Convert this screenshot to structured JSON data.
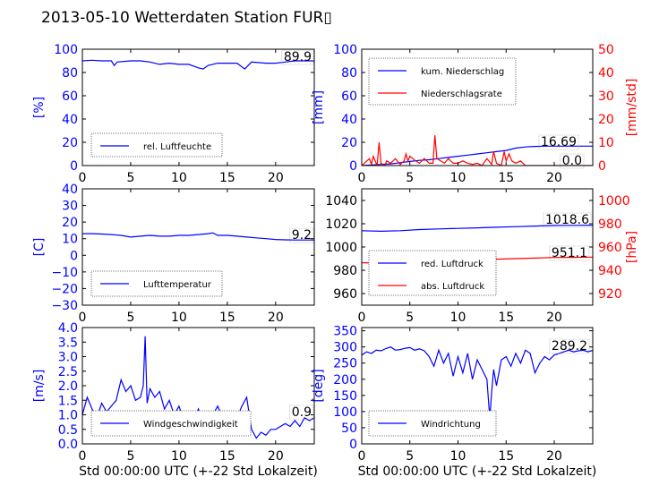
{
  "title": "2013-05-10 Wetterdaten Station FUR▯",
  "colors": {
    "blue": "#0000ff",
    "red": "#ff0000",
    "black": "#000000"
  },
  "chart_data": [
    {
      "type": "line",
      "xlabel": "",
      "ylabel": "[%]",
      "xlim": [
        0,
        24
      ],
      "ylim": [
        0,
        100
      ],
      "xticks": [
        0,
        5,
        10,
        15,
        20
      ],
      "yticks": [
        0,
        20,
        40,
        60,
        80,
        100
      ],
      "legend": "lower-left",
      "value_label": "89.9",
      "series": [
        {
          "name": "rel. Luftfeuchte",
          "x": [
            0,
            1,
            2,
            3,
            3.3,
            3.6,
            5,
            6,
            7,
            8,
            9,
            10,
            11,
            12,
            12.5,
            13,
            14,
            15,
            16,
            16.8,
            17.5,
            19,
            20,
            21,
            22,
            23,
            24
          ],
          "y": [
            90,
            90.5,
            90,
            90,
            86,
            89,
            90,
            90,
            89,
            87,
            88,
            87,
            87,
            84,
            83,
            86,
            88,
            88,
            88,
            83,
            89,
            88,
            88,
            89,
            90,
            90,
            90
          ]
        }
      ]
    },
    {
      "type": "line",
      "xlabel": "",
      "ylabel": "[mm]",
      "ylabel_right": "[mm/std]",
      "xlim": [
        0,
        24
      ],
      "ylim": [
        0,
        100
      ],
      "ylim_right": [
        0,
        50
      ],
      "xticks": [
        0,
        5,
        10,
        15,
        20
      ],
      "yticks": [
        0,
        20,
        40,
        60,
        80,
        100
      ],
      "yticks_right": [
        0,
        10,
        20,
        30,
        40,
        50
      ],
      "legend": "upper-left",
      "value_labels": [
        "16.69",
        "0.0"
      ],
      "series": [
        {
          "name": "kum. Niederschlag",
          "axis": "left",
          "x": [
            0,
            1,
            2,
            3,
            4,
            5,
            6,
            7,
            8,
            9,
            10,
            11,
            12,
            13,
            14,
            15,
            16,
            17,
            18,
            19,
            20,
            21,
            22,
            23,
            24
          ],
          "y": [
            0,
            0.5,
            1,
            1.5,
            2.5,
            3.5,
            4.5,
            5,
            6,
            7,
            8,
            9,
            10,
            11,
            12,
            13,
            15,
            16,
            16.5,
            16.7,
            16.7,
            16.7,
            16.7,
            16.7,
            16.7
          ]
        },
        {
          "name": "Niederschlagsrate",
          "axis": "right",
          "x": [
            0,
            0.8,
            1.0,
            1.2,
            1.6,
            1.8,
            2.0,
            2.4,
            2.6,
            3.0,
            3.5,
            4.0,
            4.4,
            4.6,
            4.8,
            5.0,
            5.3,
            5.6,
            6.0,
            6.5,
            7.0,
            7.4,
            7.6,
            7.8,
            8.2,
            8.6,
            9.0,
            9.5,
            10.0,
            10.5,
            11.0,
            11.5,
            12.0,
            12.5,
            13.0,
            13.5,
            13.7,
            14.0,
            14.5,
            14.8,
            15.0,
            15.3,
            15.6,
            16.0,
            16.5,
            17.0,
            18.0,
            24
          ],
          "y": [
            0,
            3,
            0.5,
            4,
            0,
            10,
            1,
            0,
            2,
            1,
            3,
            0.5,
            2,
            5,
            2,
            4,
            3,
            2,
            1,
            3,
            1,
            1,
            13,
            3,
            2,
            1,
            3,
            1,
            1,
            2,
            1,
            0.5,
            1,
            0,
            3,
            0.5,
            6,
            1,
            0,
            6,
            2,
            5,
            2,
            1,
            2,
            0,
            0,
            0
          ]
        }
      ]
    },
    {
      "type": "line",
      "xlabel": "",
      "ylabel": "[C]",
      "xlim": [
        0,
        24
      ],
      "ylim": [
        -30,
        40
      ],
      "xticks": [
        0,
        5,
        10,
        15,
        20
      ],
      "yticks": [
        -30,
        -20,
        -10,
        0,
        10,
        20,
        30,
        40
      ],
      "legend": "lower-left",
      "value_label": "9.2",
      "series": [
        {
          "name": "Lufttemperatur",
          "x": [
            0,
            1,
            2,
            3,
            4,
            5,
            6,
            7,
            8,
            9,
            10,
            11,
            12,
            13,
            13.5,
            14,
            15,
            16,
            17,
            18,
            19,
            20,
            21,
            22,
            23,
            24
          ],
          "y": [
            13,
            13,
            12.8,
            12.5,
            12,
            11,
            11.5,
            12,
            11.5,
            11.5,
            12,
            12,
            12.5,
            13,
            13.5,
            12,
            12,
            11.5,
            11,
            10.5,
            10,
            9.5,
            9.3,
            9.2,
            9.2,
            9.2
          ]
        }
      ]
    },
    {
      "type": "line",
      "xlabel": "",
      "ylabel": "",
      "ylabel_right": "[hPa]",
      "xlim": [
        0,
        24
      ],
      "ylim": [
        950,
        1050
      ],
      "ylim_right": [
        910,
        1010
      ],
      "xticks": [
        0,
        5,
        10,
        15,
        20
      ],
      "yticks": [
        960,
        980,
        1000,
        1020,
        1040
      ],
      "yticks_right": [
        920,
        940,
        960,
        980,
        1000
      ],
      "legend": "lower-left",
      "value_labels": [
        "1018.6",
        "951.1"
      ],
      "series": [
        {
          "name": "red. Luftdruck",
          "axis": "left",
          "x": [
            0,
            2,
            4,
            6,
            8,
            10,
            12,
            14,
            16,
            18,
            20,
            22,
            24
          ],
          "y": [
            1014,
            1013.5,
            1014,
            1015,
            1015.5,
            1016,
            1016.5,
            1017,
            1017.5,
            1018,
            1018.5,
            1018.6,
            1018.8
          ]
        },
        {
          "name": "abs. Luftdruck",
          "axis": "right",
          "x": [
            0,
            2,
            4,
            6,
            8,
            10,
            12,
            14,
            16,
            18,
            20,
            22,
            24
          ],
          "y": [
            946.5,
            946.3,
            946.8,
            947.5,
            948,
            948.5,
            949,
            949.5,
            950,
            950.5,
            951,
            951.1,
            951.3
          ]
        }
      ]
    },
    {
      "type": "line",
      "xlabel": "Std 00:00:00 UTC (+-22 Std Lokalzeit)",
      "ylabel": "[m/s]",
      "xlim": [
        0,
        24
      ],
      "ylim": [
        0,
        4
      ],
      "xticks": [
        0,
        5,
        10,
        15,
        20
      ],
      "yticks": [
        0.0,
        0.5,
        1.0,
        1.5,
        2.0,
        2.5,
        3.0,
        3.5,
        4.0
      ],
      "ytick_labels": [
        "0.0",
        "0.5",
        "1.0",
        "1.5",
        "2.0",
        "2.5",
        "3.0",
        "3.5",
        "4.0"
      ],
      "legend": "lower-left",
      "value_label": "0.9",
      "series": [
        {
          "name": "Windgeschwindigkeit",
          "x": [
            0,
            0.5,
            1,
            1.5,
            2,
            2.5,
            3,
            3.5,
            4,
            4.5,
            5,
            5.5,
            6,
            6.3,
            6.5,
            6.7,
            7,
            7.5,
            8,
            8.5,
            9,
            9.5,
            10,
            10.5,
            11,
            11.5,
            12,
            12.5,
            13,
            13.5,
            14,
            14.5,
            15,
            15.5,
            16,
            16.5,
            17,
            17.5,
            18,
            18.5,
            19,
            19.5,
            20,
            20.5,
            21,
            21.5,
            22,
            22.5,
            23,
            23.5,
            24
          ],
          "y": [
            1.0,
            1.6,
            1.2,
            0.9,
            1.4,
            1.1,
            1.3,
            1.5,
            2.2,
            1.8,
            2.0,
            1.5,
            1.6,
            2.0,
            3.7,
            1.4,
            1.9,
            1.6,
            1.8,
            1.2,
            1.5,
            1.0,
            1.3,
            0.8,
            1.1,
            0.7,
            1.2,
            0.8,
            1.1,
            1.0,
            1.3,
            0.9,
            0.7,
            1.1,
            0.9,
            1.3,
            1.6,
            0.5,
            0.2,
            0.4,
            0.3,
            0.5,
            0.5,
            0.6,
            0.7,
            0.6,
            0.8,
            0.6,
            0.9,
            0.8,
            0.9
          ]
        }
      ]
    },
    {
      "type": "line",
      "xlabel": "Std 00:00:00 UTC (+-22 Std Lokalzeit)",
      "ylabel": "[deg]",
      "xlim": [
        0,
        24
      ],
      "ylim": [
        0,
        360
      ],
      "xticks": [
        0,
        5,
        10,
        15,
        20
      ],
      "yticks": [
        0,
        50,
        100,
        150,
        200,
        250,
        300,
        350
      ],
      "legend": "lower-left",
      "value_label": "289.2",
      "series": [
        {
          "name": "Windrichtung",
          "x": [
            0,
            0.5,
            1,
            1.5,
            2,
            2.5,
            3,
            3.5,
            4,
            4.5,
            5,
            5.5,
            6,
            6.5,
            7,
            7.5,
            8,
            8.5,
            9,
            9.5,
            10,
            10.5,
            11,
            11.5,
            12,
            12.5,
            13,
            13.3,
            13.5,
            13.7,
            14,
            14.5,
            15,
            15.5,
            16,
            16.5,
            17,
            17.5,
            18,
            18.5,
            19,
            19.5,
            20,
            20.5,
            21,
            21.5,
            22,
            22.5,
            23,
            23.5,
            24
          ],
          "y": [
            275,
            285,
            280,
            290,
            288,
            295,
            300,
            290,
            292,
            296,
            298,
            290,
            294,
            288,
            270,
            240,
            290,
            250,
            280,
            210,
            270,
            220,
            280,
            200,
            260,
            230,
            200,
            80,
            160,
            230,
            180,
            260,
            270,
            240,
            280,
            250,
            290,
            280,
            220,
            250,
            270,
            260,
            275,
            280,
            285,
            290,
            285,
            288,
            290,
            285,
            289
          ]
        }
      ]
    }
  ]
}
